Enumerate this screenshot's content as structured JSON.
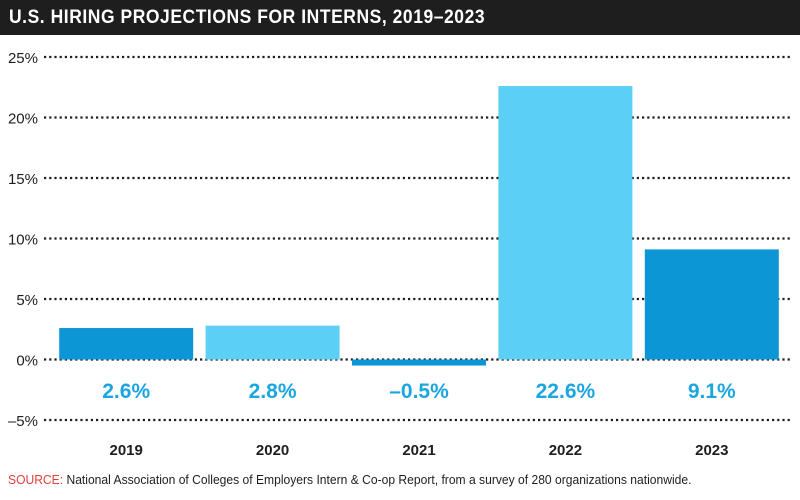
{
  "title": "U.S. HIRING PROJECTIONS FOR INTERNS, 2019–2023",
  "source": {
    "label": "SOURCE:",
    "text": "National Association of Colleges of Employers Intern & Co-op Report, from a survey of 280 organizations nationwide."
  },
  "colors": {
    "dark_blue": "#0d96d6",
    "light_blue": "#5bcff5",
    "label_blue": "#1ba6e0",
    "title_bg": "#1e1e1e",
    "source_red": "#e0403a"
  },
  "chart_data": {
    "type": "bar",
    "categories": [
      "2019",
      "2020",
      "2021",
      "2022",
      "2023"
    ],
    "values": [
      2.6,
      2.8,
      -0.5,
      22.6,
      9.1
    ],
    "data_labels": [
      "2.6%",
      "2.8%",
      "–0.5%",
      "22.6%",
      "9.1%"
    ],
    "bar_colors": [
      "#0d96d6",
      "#5bcff5",
      "#0d96d6",
      "#5bcff5",
      "#0d96d6"
    ],
    "ylim": [
      -5,
      25
    ],
    "yticks": [
      -5,
      0,
      5,
      10,
      15,
      20,
      25
    ],
    "ytick_labels": [
      "–5%",
      "0%",
      "5%",
      "10%",
      "15%",
      "20%",
      "25%"
    ],
    "grid": "dotted-horizontal",
    "legend": "none"
  }
}
